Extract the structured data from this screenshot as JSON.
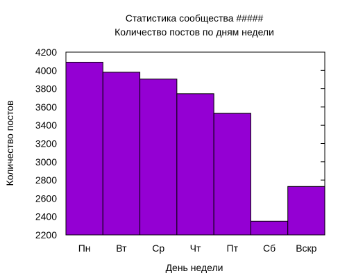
{
  "chart_data": {
    "type": "bar",
    "title": "Статистика сообщества #####",
    "subtitle": "Количество постов по дням недели",
    "xlabel": "День недели",
    "ylabel": "Количество постов",
    "categories": [
      "Пн",
      "Вт",
      "Ср",
      "Чт",
      "Пт",
      "Сб",
      "Вскр"
    ],
    "values": [
      4090,
      3980,
      3905,
      3745,
      3530,
      2350,
      2730
    ],
    "ylim": [
      2200,
      4200
    ],
    "yticks": [
      2200,
      2400,
      2600,
      2800,
      3000,
      3200,
      3400,
      3600,
      3800,
      4000,
      4200
    ],
    "bar_color": "#9400d3",
    "grid": false,
    "legend": "none"
  }
}
